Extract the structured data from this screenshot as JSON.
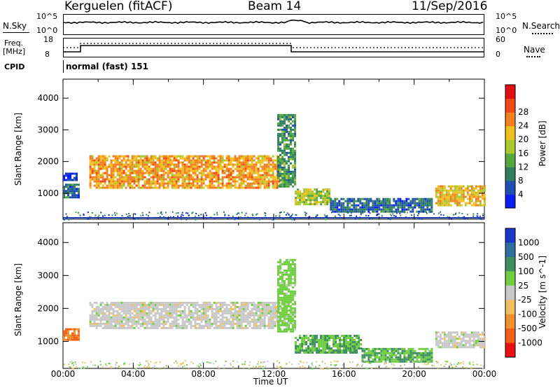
{
  "header": {
    "station": "Kerguelen (fitACF)",
    "beam": "Beam 14",
    "date": "11/Sep/2016"
  },
  "noise_panel": {
    "left_label": "N.Sky",
    "left_ticks": [
      "10^5",
      "10^0"
    ],
    "right_label": "N.Search",
    "right_ticks": [
      "10^5",
      "10^0"
    ]
  },
  "freq_panel": {
    "left_label": "Freq.",
    "left_unit": "[MHz]",
    "left_ticks": [
      "18",
      "8"
    ],
    "right_label": "Nave",
    "right_ticks": [
      "60",
      "0"
    ]
  },
  "cpid": {
    "label": "CPID",
    "mode": "normal (fast) 151"
  },
  "time_axis": {
    "title": "Time UT",
    "ticks": [
      "00:00",
      "04:00",
      "08:00",
      "12:00",
      "16:00",
      "20:00",
      "00:00"
    ]
  },
  "chart_data": [
    {
      "type": "heatmap",
      "quantity": "Power",
      "ylabel": "Slant Range [km]",
      "yticks": [
        "1000",
        "2000",
        "3000",
        "4000"
      ],
      "ylim": [
        180,
        4600
      ],
      "xlim_hours": [
        0,
        24
      ],
      "colorbar": {
        "label": "Power [dB]",
        "ticks": [
          "4",
          "8",
          "12",
          "16",
          "20",
          "24",
          "28"
        ],
        "colors": [
          "#0a20f0",
          "#1f4fb0",
          "#2f7f60",
          "#55a840",
          "#a8c830",
          "#f0c020",
          "#f08020",
          "#f04818",
          "#e01010"
        ]
      },
      "regions": [
        {
          "t0": 0.0,
          "t1": 0.9,
          "r0": 850,
          "r1": 1300,
          "value": 8
        },
        {
          "t0": 0.0,
          "t1": 0.8,
          "r0": 1400,
          "r1": 1650,
          "value": 4
        },
        {
          "t0": 1.5,
          "t1": 12.3,
          "r0": 1200,
          "r1": 2200,
          "value": 24
        },
        {
          "t0": 12.2,
          "t1": 13.2,
          "r0": 1200,
          "r1": 3500,
          "value": 12
        },
        {
          "t0": 13.2,
          "t1": 15.2,
          "r0": 650,
          "r1": 1150,
          "value": 18
        },
        {
          "t0": 15.2,
          "t1": 21.0,
          "r0": 400,
          "r1": 850,
          "value": 8
        },
        {
          "t0": 21.2,
          "t1": 24.0,
          "r0": 600,
          "r1": 1250,
          "value": 22
        }
      ]
    },
    {
      "type": "heatmap",
      "quantity": "Velocity",
      "ylabel": "Slant Range [km]",
      "yticks": [
        "1000",
        "2000",
        "3000",
        "4000"
      ],
      "ylim": [
        180,
        4600
      ],
      "xlim_hours": [
        0,
        24
      ],
      "colorbar": {
        "label": "Velocity [m s^-1]",
        "ticks": [
          "1000",
          "500",
          "100",
          "25",
          "-25",
          "-100",
          "-500",
          "-1000"
        ],
        "colors": [
          "#1838c8",
          "#2f6fa0",
          "#3f8f60",
          "#6fcf40",
          "#c8c8c8",
          "#f0c060",
          "#f09030",
          "#f06018",
          "#e81010"
        ]
      },
      "regions": [
        {
          "t0": 0.0,
          "t1": 0.9,
          "r0": 1050,
          "r1": 1400,
          "value": -300
        },
        {
          "t0": 1.5,
          "t1": 12.3,
          "r0": 1400,
          "r1": 2200,
          "value": 0
        },
        {
          "t0": 12.2,
          "t1": 13.2,
          "r0": 1300,
          "r1": 3500,
          "value": 50
        },
        {
          "t0": 13.2,
          "t1": 17.0,
          "r0": 650,
          "r1": 1200,
          "value": 100
        },
        {
          "t0": 17.0,
          "t1": 21.0,
          "r0": 400,
          "r1": 800,
          "value": 100
        },
        {
          "t0": 21.2,
          "t1": 24.0,
          "r0": 800,
          "r1": 1300,
          "value": 0
        }
      ]
    }
  ]
}
